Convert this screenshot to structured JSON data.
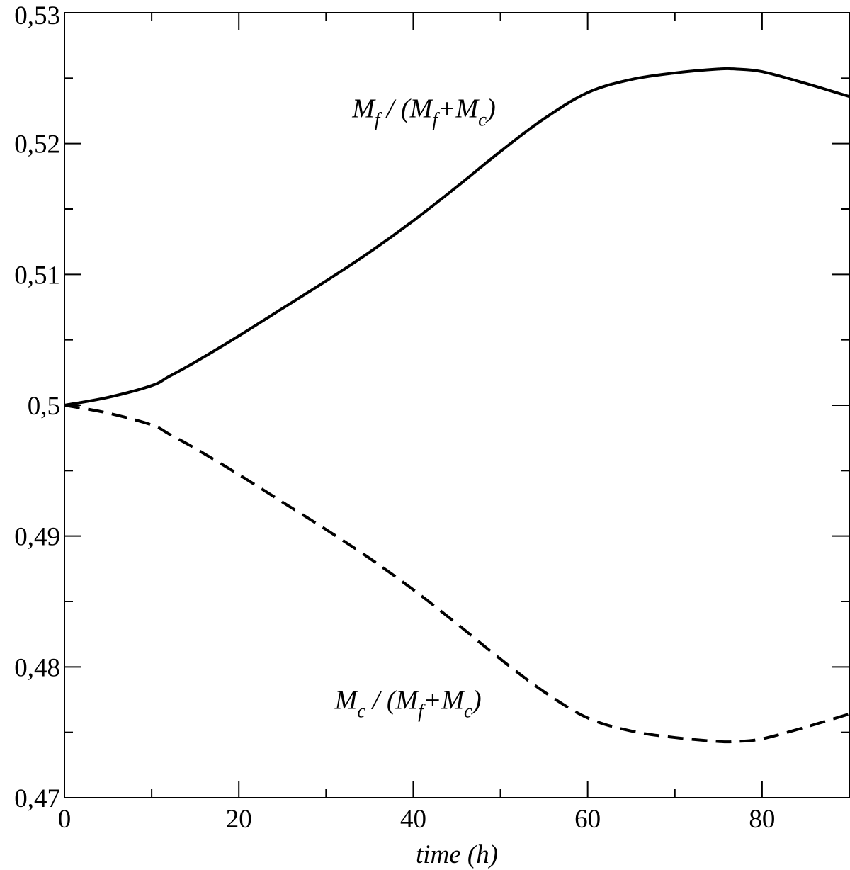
{
  "chart_data": {
    "type": "line",
    "title": "",
    "xlabel": "time (h)",
    "ylabel": "",
    "xlim": [
      0,
      90
    ],
    "ylim": [
      0.47,
      0.53
    ],
    "x_ticks": [
      0,
      20,
      40,
      60,
      80
    ],
    "x_tick_labels": [
      "0",
      "20",
      "40",
      "60",
      "80"
    ],
    "x_minor_step": 10,
    "y_ticks": [
      0.47,
      0.48,
      0.49,
      0.5,
      0.51,
      0.52,
      0.53
    ],
    "y_tick_labels": [
      "0,47",
      "0,48",
      "0,49",
      "0,5",
      "0,51",
      "0,52",
      "0,53"
    ],
    "y_minor_step": 0.005,
    "grid": false,
    "legend": "none",
    "series": [
      {
        "style": "solid",
        "color": "#000000",
        "x": [
          0,
          5,
          10,
          12,
          15,
          20,
          25,
          30,
          35,
          40,
          45,
          50,
          55,
          60,
          65,
          70,
          75,
          77,
          80,
          85,
          90
        ],
        "y": [
          0.5,
          0.5006,
          0.5015,
          0.5022,
          0.5033,
          0.5053,
          0.5074,
          0.5095,
          0.5117,
          0.5141,
          0.5167,
          0.5194,
          0.5219,
          0.5239,
          0.5249,
          0.5254,
          0.5257,
          0.5257,
          0.5255,
          0.5246,
          0.5236
        ]
      },
      {
        "style": "dashed",
        "color": "#000000",
        "x": [
          0,
          5,
          10,
          12,
          15,
          20,
          25,
          30,
          35,
          40,
          45,
          50,
          55,
          60,
          65,
          70,
          75,
          77,
          80,
          85,
          90
        ],
        "y": [
          0.5,
          0.4994,
          0.4985,
          0.4978,
          0.4967,
          0.4947,
          0.4926,
          0.4905,
          0.4883,
          0.4859,
          0.4833,
          0.4806,
          0.4781,
          0.4761,
          0.4751,
          0.4746,
          0.4743,
          0.4743,
          0.4745,
          0.4754,
          0.4764
        ]
      }
    ],
    "annotations": [
      {
        "id": "ann-mf",
        "x": 33,
        "y": 0.522,
        "parts": [
          {
            "t": "M",
            "sub": false
          },
          {
            "t": "f",
            "sub": true
          },
          {
            "t": " / (M",
            "sub": false
          },
          {
            "t": "f",
            "sub": true
          },
          {
            "t": "+M",
            "sub": false
          },
          {
            "t": "c",
            "sub": true
          },
          {
            "t": ")",
            "sub": false
          }
        ]
      },
      {
        "id": "ann-mc",
        "x": 31,
        "y": 0.4768,
        "parts": [
          {
            "t": "M",
            "sub": false
          },
          {
            "t": "c",
            "sub": true
          },
          {
            "t": " / (M",
            "sub": false
          },
          {
            "t": "f",
            "sub": true
          },
          {
            "t": "+M",
            "sub": false
          },
          {
            "t": "c",
            "sub": true
          },
          {
            "t": ")",
            "sub": false
          }
        ]
      }
    ]
  }
}
